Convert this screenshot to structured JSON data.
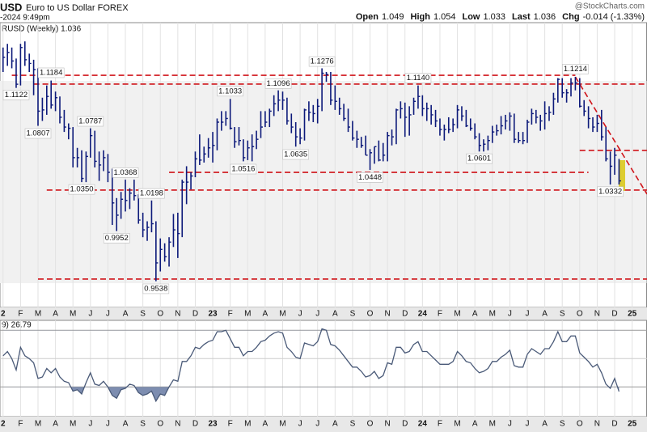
{
  "chart_data": {
    "type": "ohlc",
    "title": "USD",
    "subtitle": "Euro to US Dollar FOREX",
    "date": "-2024 9:49pm",
    "source": "@StockCharts.com",
    "panel_label": "RUSD (Weekly) 1.036",
    "rsi_label": "9) 26.79",
    "quote": [
      {
        "label": "Open",
        "value": 1.049
      },
      {
        "label": "High",
        "value": 1.054
      },
      {
        "label": "Low",
        "value": 1.033
      },
      {
        "label": "Last",
        "value": 1.036
      },
      {
        "label": "Chg",
        "value": "-0.014 (-1.33%)"
      }
    ],
    "color": "#0d1a7a",
    "level_color": "#d0141a",
    "rsi_color": "#4a5a78",
    "grid": true,
    "xlim": [
      -0.7,
      147.4
    ],
    "ylim": [
      0.9293,
      1.164
    ],
    "xticks": [
      {
        "value": 0,
        "label": "2"
      },
      {
        "value": 4,
        "label": "F"
      },
      {
        "value": 8,
        "label": "M"
      },
      {
        "value": 12,
        "label": "A"
      },
      {
        "value": 16,
        "label": "M"
      },
      {
        "value": 20,
        "label": "J"
      },
      {
        "value": 24,
        "label": "J"
      },
      {
        "value": 28,
        "label": "A"
      },
      {
        "value": 32,
        "label": "S"
      },
      {
        "value": 36,
        "label": "O"
      },
      {
        "value": 40,
        "label": "N"
      },
      {
        "value": 44,
        "label": "D"
      },
      {
        "value": 48,
        "label": "23"
      },
      {
        "value": 52,
        "label": "F"
      },
      {
        "value": 56,
        "label": "M"
      },
      {
        "value": 60,
        "label": "A"
      },
      {
        "value": 64,
        "label": "M"
      },
      {
        "value": 68,
        "label": "J"
      },
      {
        "value": 72,
        "label": "J"
      },
      {
        "value": 76,
        "label": "A"
      },
      {
        "value": 80,
        "label": "S"
      },
      {
        "value": 84,
        "label": "O"
      },
      {
        "value": 88,
        "label": "N"
      },
      {
        "value": 92,
        "label": "D"
      },
      {
        "value": 96,
        "label": "24"
      },
      {
        "value": 100,
        "label": "F"
      },
      {
        "value": 104,
        "label": "M"
      },
      {
        "value": 108,
        "label": "A"
      },
      {
        "value": 112,
        "label": "M"
      },
      {
        "value": 116,
        "label": "J"
      },
      {
        "value": 120,
        "label": "J"
      },
      {
        "value": 124,
        "label": "A"
      },
      {
        "value": 128,
        "label": "S"
      },
      {
        "value": 132,
        "label": "O"
      },
      {
        "value": 136,
        "label": "N"
      },
      {
        "value": 140,
        "label": "D"
      },
      {
        "value": 144,
        "label": "25"
      }
    ],
    "high": [
      1.145,
      1.148,
      1.145,
      1.136,
      1.148,
      1.15,
      1.14,
      1.135,
      1.128,
      1.104,
      1.114,
      1.118,
      1.109,
      1.105,
      1.094,
      1.083,
      1.08,
      1.063,
      1.061,
      1.06,
      1.079,
      1.077,
      1.06,
      1.061,
      1.058,
      1.046,
      1.022,
      1.027,
      1.037,
      1.03,
      1.037,
      1.025,
      1.01,
      1.003,
      1.02,
      1.003,
      0.989,
      0.985,
      0.99,
      1.009,
      1.01,
      1.037,
      1.048,
      1.043,
      1.06,
      1.074,
      1.064,
      1.071,
      1.076,
      1.087,
      1.093,
      1.093,
      1.103,
      1.08,
      1.08,
      1.07,
      1.069,
      1.074,
      1.077,
      1.093,
      1.093,
      1.095,
      1.106,
      1.11,
      1.109,
      1.104,
      1.091,
      1.084,
      1.079,
      1.095,
      1.101,
      1.098,
      1.103,
      1.128,
      1.125,
      1.125,
      1.114,
      1.104,
      1.099,
      1.095,
      1.085,
      1.077,
      1.072,
      1.073,
      1.062,
      1.064,
      1.069,
      1.067,
      1.076,
      1.078,
      1.095,
      1.101,
      1.1,
      1.097,
      1.104,
      1.114,
      1.106,
      1.1,
      1.098,
      1.094,
      1.087,
      1.082,
      1.088,
      1.087,
      1.098,
      1.097,
      1.094,
      1.087,
      1.083,
      1.075,
      1.07,
      1.073,
      1.081,
      1.082,
      1.089,
      1.09,
      1.092,
      1.091,
      1.076,
      1.076,
      1.086,
      1.095,
      1.094,
      1.09,
      1.101,
      1.097,
      1.108,
      1.12,
      1.12,
      1.111,
      1.12,
      1.121,
      1.12,
      1.102,
      1.097,
      1.088,
      1.09,
      1.094,
      1.08,
      1.06,
      1.063,
      1.054
    ],
    "low": [
      1.125,
      1.13,
      1.128,
      1.112,
      1.114,
      1.13,
      1.125,
      1.106,
      1.081,
      1.085,
      1.09,
      1.095,
      1.093,
      1.083,
      1.076,
      1.07,
      1.047,
      1.047,
      1.035,
      1.035,
      1.055,
      1.047,
      1.036,
      1.044,
      1.035,
      1.0,
      0.995,
      1.005,
      1.011,
      1.013,
      1.02,
      1.001,
      0.99,
      0.987,
      0.994,
      0.954,
      0.962,
      0.97,
      0.966,
      0.982,
      0.973,
      0.99,
      1.017,
      1.029,
      1.039,
      1.049,
      1.051,
      1.055,
      1.051,
      1.061,
      1.077,
      1.081,
      1.078,
      1.063,
      1.065,
      1.052,
      1.053,
      1.052,
      1.062,
      1.071,
      1.08,
      1.08,
      1.089,
      1.093,
      1.094,
      1.082,
      1.075,
      1.064,
      1.066,
      1.069,
      1.085,
      1.084,
      1.083,
      1.093,
      1.117,
      1.098,
      1.094,
      1.09,
      1.085,
      1.076,
      1.069,
      1.063,
      1.063,
      1.057,
      1.045,
      1.05,
      1.052,
      1.052,
      1.052,
      1.065,
      1.066,
      1.087,
      1.072,
      1.073,
      1.09,
      1.095,
      1.089,
      1.085,
      1.082,
      1.08,
      1.073,
      1.069,
      1.075,
      1.076,
      1.079,
      1.085,
      1.08,
      1.077,
      1.07,
      1.06,
      1.06,
      1.061,
      1.067,
      1.073,
      1.074,
      1.078,
      1.077,
      1.067,
      1.067,
      1.066,
      1.067,
      1.082,
      1.083,
      1.077,
      1.078,
      1.085,
      1.09,
      1.1,
      1.104,
      1.1,
      1.105,
      1.11,
      1.096,
      1.089,
      1.079,
      1.076,
      1.076,
      1.069,
      1.052,
      1.033,
      1.041,
      1.033
    ],
    "close": [
      1.137,
      1.141,
      1.134,
      1.115,
      1.145,
      1.135,
      1.132,
      1.127,
      1.093,
      1.094,
      1.105,
      1.098,
      1.104,
      1.088,
      1.08,
      1.079,
      1.055,
      1.055,
      1.038,
      1.056,
      1.073,
      1.052,
      1.049,
      1.055,
      1.043,
      1.018,
      1.008,
      1.021,
      1.02,
      1.026,
      1.024,
      1.004,
      0.996,
      0.998,
      1.001,
      0.969,
      0.98,
      0.974,
      0.986,
      0.996,
      0.993,
      1.035,
      1.035,
      1.04,
      1.054,
      1.053,
      1.058,
      1.063,
      1.065,
      1.084,
      1.084,
      1.087,
      1.079,
      1.068,
      1.069,
      1.055,
      1.063,
      1.064,
      1.07,
      1.08,
      1.084,
      1.093,
      1.099,
      1.102,
      1.102,
      1.085,
      1.08,
      1.072,
      1.071,
      1.094,
      1.092,
      1.091,
      1.097,
      1.124,
      1.123,
      1.102,
      1.101,
      1.095,
      1.087,
      1.08,
      1.071,
      1.07,
      1.065,
      1.057,
      1.059,
      1.064,
      1.053,
      1.057,
      1.073,
      1.072,
      1.094,
      1.095,
      1.088,
      1.09,
      1.101,
      1.105,
      1.095,
      1.095,
      1.09,
      1.085,
      1.078,
      1.078,
      1.078,
      1.082,
      1.094,
      1.089,
      1.081,
      1.079,
      1.072,
      1.065,
      1.066,
      1.069,
      1.076,
      1.077,
      1.081,
      1.085,
      1.089,
      1.07,
      1.069,
      1.069,
      1.084,
      1.091,
      1.088,
      1.085,
      1.091,
      1.092,
      1.103,
      1.119,
      1.108,
      1.108,
      1.116,
      1.116,
      1.097,
      1.093,
      1.087,
      1.08,
      1.083,
      1.072,
      1.054,
      1.048,
      1.057,
      1.036
    ],
    "annotations": [
      {
        "value": 1.1122,
        "label": "1.1122",
        "x": 3
      },
      {
        "value": 1.1184,
        "label": "1.1184",
        "x": 11
      },
      {
        "value": 1.0807,
        "label": "1.0807",
        "x": 8
      },
      {
        "value": 1.0787,
        "label": "1.0787",
        "x": 20
      },
      {
        "value": 1.035,
        "label": "1.0350",
        "x": 18
      },
      {
        "value": 1.0368,
        "label": "1.0368",
        "x": 28
      },
      {
        "value": 0.9952,
        "label": "0.9952",
        "x": 26
      },
      {
        "value": 1.0198,
        "label": "1.0198",
        "x": 34
      },
      {
        "value": 0.9538,
        "label": "0.9538",
        "x": 35
      },
      {
        "value": 1.1033,
        "label": "1.1033",
        "x": 52
      },
      {
        "value": 1.0516,
        "label": "1.0516",
        "x": 55
      },
      {
        "value": 1.1096,
        "label": "1.1096",
        "x": 63
      },
      {
        "value": 1.0635,
        "label": "1.0635",
        "x": 67
      },
      {
        "value": 1.1276,
        "label": "1.1276",
        "x": 73
      },
      {
        "value": 1.0448,
        "label": "1.0448",
        "x": 84
      },
      {
        "value": 1.114,
        "label": "1.1140",
        "x": 95
      },
      {
        "value": 1.0601,
        "label": "1.0601",
        "x": 109
      },
      {
        "value": 1.1214,
        "label": "1.1214",
        "x": 131
      },
      {
        "value": 1.0332,
        "label": "1.0332",
        "x": 139
      }
    ],
    "levels": [
      {
        "value": 1.1223,
        "x": [
          2,
          131
        ]
      },
      {
        "value": 1.1151,
        "x": [
          7,
          147.4
        ]
      },
      {
        "value": 1.0609,
        "x": [
          132,
          147.4
        ]
      },
      {
        "value": 1.043,
        "x": [
          38,
          134
        ]
      },
      {
        "value": 1.0285,
        "x": [
          10,
          147.4
        ]
      },
      {
        "value": 0.9558,
        "x": [
          8,
          147.4
        ]
      }
    ],
    "trendline": {
      "x": [
        131,
        147.4
      ],
      "values": [
        1.121,
        1.0252
      ]
    },
    "rsi": {
      "ylim": [
        9,
        77
      ],
      "yticks": [
        30,
        50,
        70
      ],
      "values": [
        52,
        55,
        50,
        42,
        58,
        52,
        50,
        47,
        36,
        37,
        43,
        40,
        43,
        37,
        34,
        33,
        27,
        28,
        25,
        33,
        40,
        32,
        31,
        34,
        30,
        24,
        22,
        28,
        29,
        32,
        31,
        26,
        24,
        25,
        27,
        20,
        25,
        24,
        30,
        35,
        34,
        48,
        48,
        52,
        58,
        57,
        60,
        62,
        63,
        69,
        69,
        70,
        64,
        58,
        58,
        52,
        55,
        55,
        58,
        62,
        63,
        66,
        68,
        69,
        68,
        58,
        55,
        51,
        50,
        61,
        60,
        59,
        62,
        71,
        70,
        60,
        59,
        56,
        52,
        48,
        44,
        44,
        41,
        37,
        38,
        41,
        36,
        38,
        47,
        46,
        58,
        58,
        54,
        55,
        60,
        62,
        55,
        55,
        52,
        49,
        46,
        46,
        46,
        48,
        55,
        52,
        48,
        47,
        43,
        40,
        41,
        43,
        48,
        48,
        51,
        53,
        56,
        45,
        44,
        44,
        53,
        57,
        55,
        53,
        57,
        57,
        62,
        69,
        62,
        62,
        66,
        66,
        54,
        51,
        48,
        44,
        46,
        40,
        32,
        29,
        36,
        26.79
      ]
    }
  }
}
